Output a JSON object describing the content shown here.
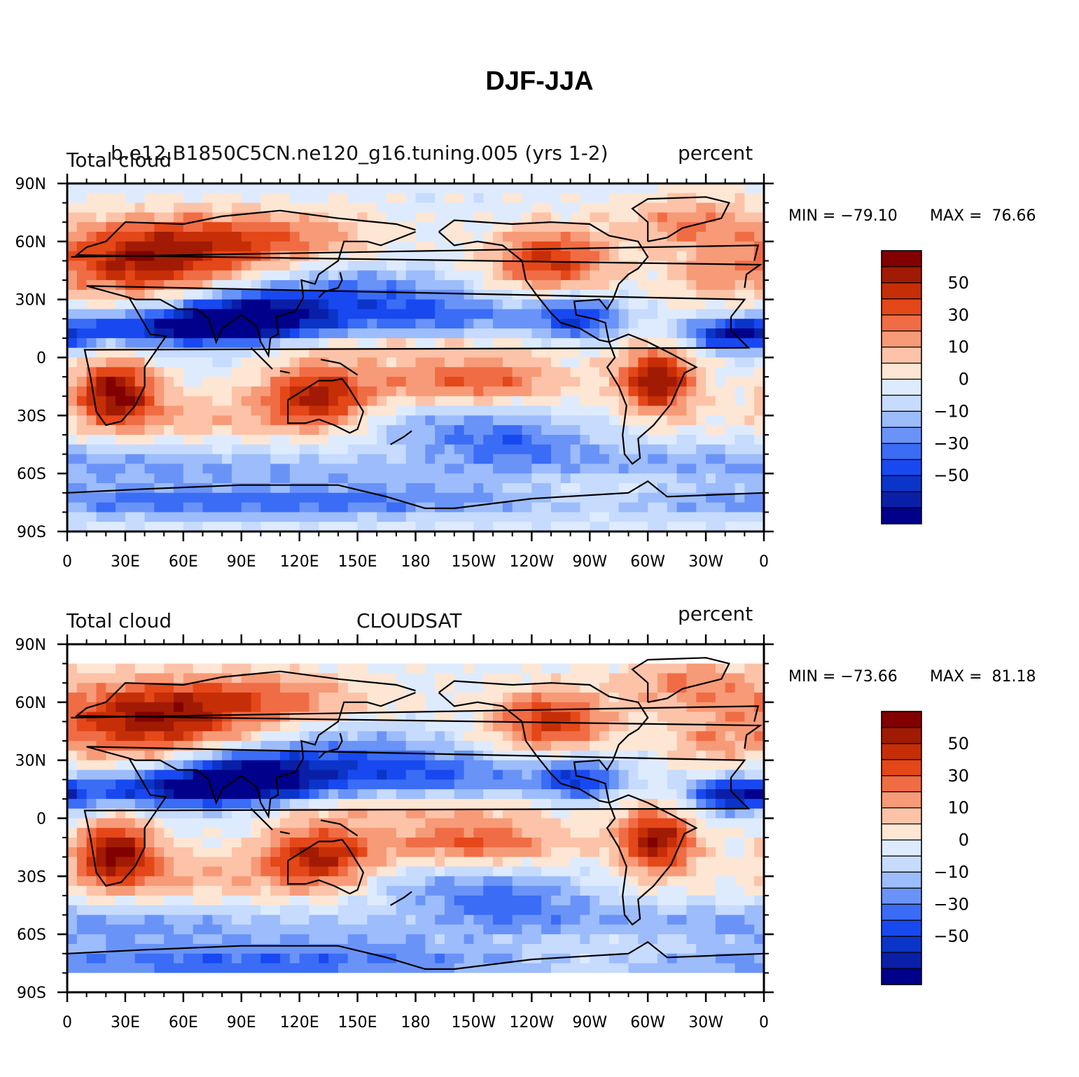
{
  "title": "DJF-JJA",
  "palette": [
    "#00008b",
    "#0a1fa8",
    "#0b35c8",
    "#1848ef",
    "#3a6cf5",
    "#6a93f7",
    "#9cbcfb",
    "#c6dbfd",
    "#deebfe",
    "#fde6d3",
    "#fcc3a8",
    "#f79a77",
    "#f06c45",
    "#e44718",
    "#c62e07",
    "#a11a04",
    "#820000"
  ],
  "map": {
    "lon_ticks": [
      "0",
      "30E",
      "60E",
      "90E",
      "120E",
      "150E",
      "180",
      "150W",
      "120W",
      "90W",
      "60W",
      "30W",
      "0"
    ],
    "lat_ticks": [
      "90N",
      "60N",
      "30N",
      "0",
      "30S",
      "60S",
      "90S"
    ]
  },
  "colorbar": {
    "labels": [
      "50",
      "30",
      "10",
      "0",
      "−10",
      "−30",
      "−50"
    ]
  },
  "panels": [
    {
      "id": "top",
      "left_label": "Total cloud",
      "center_label": "b.e12.B1850C5CN.ne120_g16.tuning.005 (yrs 1-2)",
      "right_label": "percent",
      "min_text": "MIN = −79.10",
      "max_text": "MAX =  76.66",
      "field_seed": 7
    },
    {
      "id": "bottom",
      "left_label": "Total cloud",
      "center_label": "CLOUDSAT",
      "right_label": "percent",
      "min_text": "MIN = −73.66",
      "max_text": "MAX =  81.18",
      "field_seed": 13
    }
  ]
}
